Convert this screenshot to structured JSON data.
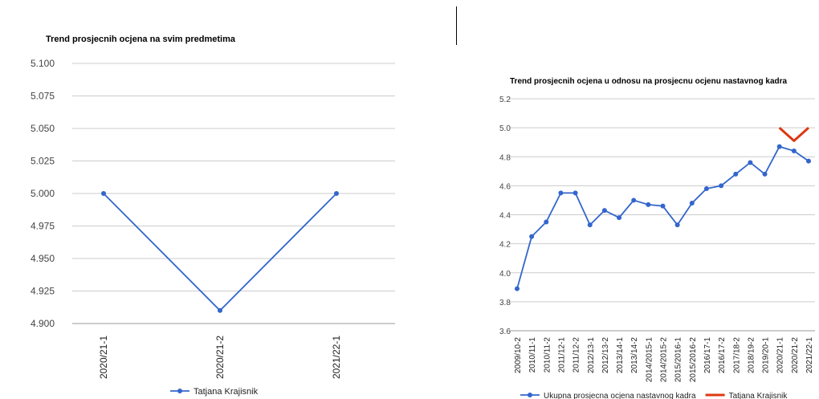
{
  "chart_data": [
    {
      "type": "line",
      "title": "Trend prosjecnih ocjena na svim predmetima",
      "xlabel": "",
      "ylabel": "",
      "categories": [
        "2020/21-1",
        "2020/21-2",
        "2021/22-1"
      ],
      "yticks": [
        "5.100",
        "5.075",
        "5.050",
        "5.025",
        "5.000",
        "4.975",
        "4.950",
        "4.925",
        "4.900"
      ],
      "ylim": [
        4.9,
        5.1
      ],
      "grid": true,
      "legend": "bottom",
      "series": [
        {
          "name": "Tatjana Krajisnik",
          "color": "#3366cc",
          "values": [
            5.0,
            4.91,
            5.0
          ]
        }
      ]
    },
    {
      "type": "line",
      "title": "Trend prosjecnih ocjena u odnosu na prosjecnu ocjenu nastavnog kadra",
      "xlabel": "",
      "ylabel": "",
      "categories": [
        "2009/10-2",
        "2010/11-1",
        "2010/11-2",
        "2011/12-1",
        "2011/12-2",
        "2012/13-1",
        "2012/13-2",
        "2013/14-1",
        "2013/14-2",
        "2014/2015-1",
        "2014/2015-2",
        "2015/2016-1",
        "2015/2016-2",
        "2016/17-1",
        "2016/17-2",
        "2017/18-2",
        "2018/19-2",
        "2019/20-1",
        "2020/21-1",
        "2020/21-2",
        "2021/22-1"
      ],
      "yticks": [
        "5.2",
        "5.0",
        "4.8",
        "4.6",
        "4.4",
        "4.2",
        "4.0",
        "3.8",
        "3.6"
      ],
      "ylim": [
        3.6,
        5.2
      ],
      "grid": true,
      "legend": "bottom",
      "series": [
        {
          "name": "Ukupna prosjecna ocjena nastavnog kadra",
          "color": "#3366cc",
          "values": [
            3.89,
            4.25,
            4.35,
            4.55,
            4.55,
            4.33,
            4.43,
            4.38,
            4.5,
            4.47,
            4.46,
            4.33,
            4.48,
            4.58,
            4.6,
            4.68,
            4.76,
            4.68,
            4.87,
            4.84,
            4.77
          ]
        },
        {
          "name": "Tatjana Krajisnik",
          "color": "#dc3912",
          "values": [
            null,
            null,
            null,
            null,
            null,
            null,
            null,
            null,
            null,
            null,
            null,
            null,
            null,
            null,
            null,
            null,
            null,
            null,
            5.0,
            4.91,
            5.0
          ]
        }
      ]
    }
  ]
}
